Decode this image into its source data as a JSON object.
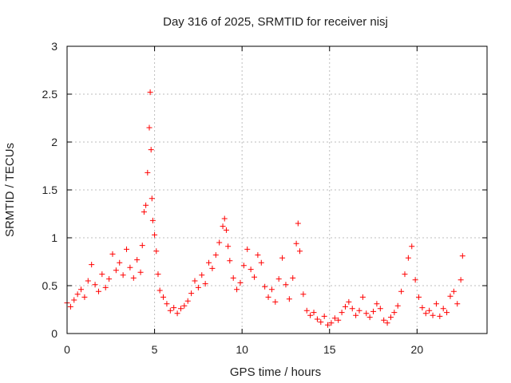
{
  "chart_data": {
    "type": "scatter",
    "title": "Day 316 of 2025, SRMTID for receiver nisj",
    "xlabel": "GPS time / hours",
    "ylabel": "SRMTID / TECUs",
    "xlim": [
      0,
      24
    ],
    "ylim": [
      0,
      3
    ],
    "xticks": [
      0,
      5,
      10,
      15,
      20
    ],
    "yticks": [
      0,
      0.5,
      1,
      1.5,
      2,
      2.5,
      3
    ],
    "xtick_labels": [
      "0",
      "5",
      "10",
      "15",
      "20"
    ],
    "ytick_labels": [
      "0",
      "0.5",
      "1",
      "1.5",
      "2",
      "2.5",
      "3"
    ],
    "grid": true,
    "marker": "+",
    "marker_color": "#ff0000",
    "series": [
      {
        "name": "SRMTID",
        "x": [
          0.0,
          0.2,
          0.4,
          0.6,
          0.8,
          1.0,
          1.2,
          1.4,
          1.6,
          1.8,
          2.0,
          2.2,
          2.4,
          2.6,
          2.8,
          3.0,
          3.2,
          3.4,
          3.6,
          3.8,
          4.0,
          4.2,
          4.3,
          4.4,
          4.5,
          4.6,
          4.7,
          4.75,
          4.8,
          4.85,
          4.9,
          5.0,
          5.1,
          5.2,
          5.3,
          5.5,
          5.7,
          5.9,
          6.1,
          6.3,
          6.5,
          6.7,
          6.9,
          7.1,
          7.3,
          7.5,
          7.7,
          7.9,
          8.1,
          8.3,
          8.5,
          8.7,
          8.9,
          9.0,
          9.1,
          9.2,
          9.3,
          9.5,
          9.7,
          9.9,
          10.1,
          10.3,
          10.5,
          10.7,
          10.9,
          11.1,
          11.3,
          11.5,
          11.7,
          11.9,
          12.1,
          12.3,
          12.5,
          12.7,
          12.9,
          13.1,
          13.2,
          13.3,
          13.5,
          13.7,
          13.9,
          14.1,
          14.3,
          14.5,
          14.7,
          14.9,
          15.1,
          15.3,
          15.5,
          15.7,
          15.9,
          16.1,
          16.3,
          16.5,
          16.7,
          16.9,
          17.1,
          17.3,
          17.5,
          17.7,
          17.9,
          18.1,
          18.3,
          18.5,
          18.7,
          18.9,
          19.1,
          19.3,
          19.5,
          19.7,
          19.9,
          20.1,
          20.3,
          20.5,
          20.7,
          20.9,
          21.1,
          21.3,
          21.5,
          21.7,
          21.9,
          22.1,
          22.3,
          22.5,
          22.6
        ],
        "y": [
          0.32,
          0.28,
          0.35,
          0.41,
          0.46,
          0.38,
          0.55,
          0.72,
          0.51,
          0.44,
          0.62,
          0.48,
          0.57,
          0.83,
          0.66,
          0.74,
          0.61,
          0.88,
          0.69,
          0.58,
          0.77,
          0.64,
          0.92,
          1.27,
          1.34,
          1.68,
          2.15,
          2.52,
          1.92,
          1.41,
          1.18,
          1.03,
          0.86,
          0.62,
          0.45,
          0.38,
          0.31,
          0.24,
          0.27,
          0.21,
          0.26,
          0.29,
          0.34,
          0.42,
          0.55,
          0.48,
          0.61,
          0.52,
          0.74,
          0.68,
          0.82,
          0.95,
          1.12,
          1.2,
          1.08,
          0.91,
          0.76,
          0.58,
          0.46,
          0.53,
          0.71,
          0.88,
          0.67,
          0.59,
          0.82,
          0.74,
          0.49,
          0.38,
          0.46,
          0.33,
          0.57,
          0.79,
          0.51,
          0.36,
          0.58,
          0.94,
          1.15,
          0.86,
          0.41,
          0.24,
          0.19,
          0.22,
          0.15,
          0.12,
          0.18,
          0.09,
          0.11,
          0.16,
          0.14,
          0.22,
          0.28,
          0.33,
          0.26,
          0.19,
          0.24,
          0.38,
          0.21,
          0.17,
          0.23,
          0.31,
          0.26,
          0.14,
          0.11,
          0.17,
          0.22,
          0.29,
          0.44,
          0.62,
          0.79,
          0.91,
          0.56,
          0.38,
          0.27,
          0.21,
          0.24,
          0.19,
          0.31,
          0.18,
          0.26,
          0.22,
          0.39,
          0.44,
          0.31,
          0.56,
          0.81
        ]
      }
    ]
  }
}
